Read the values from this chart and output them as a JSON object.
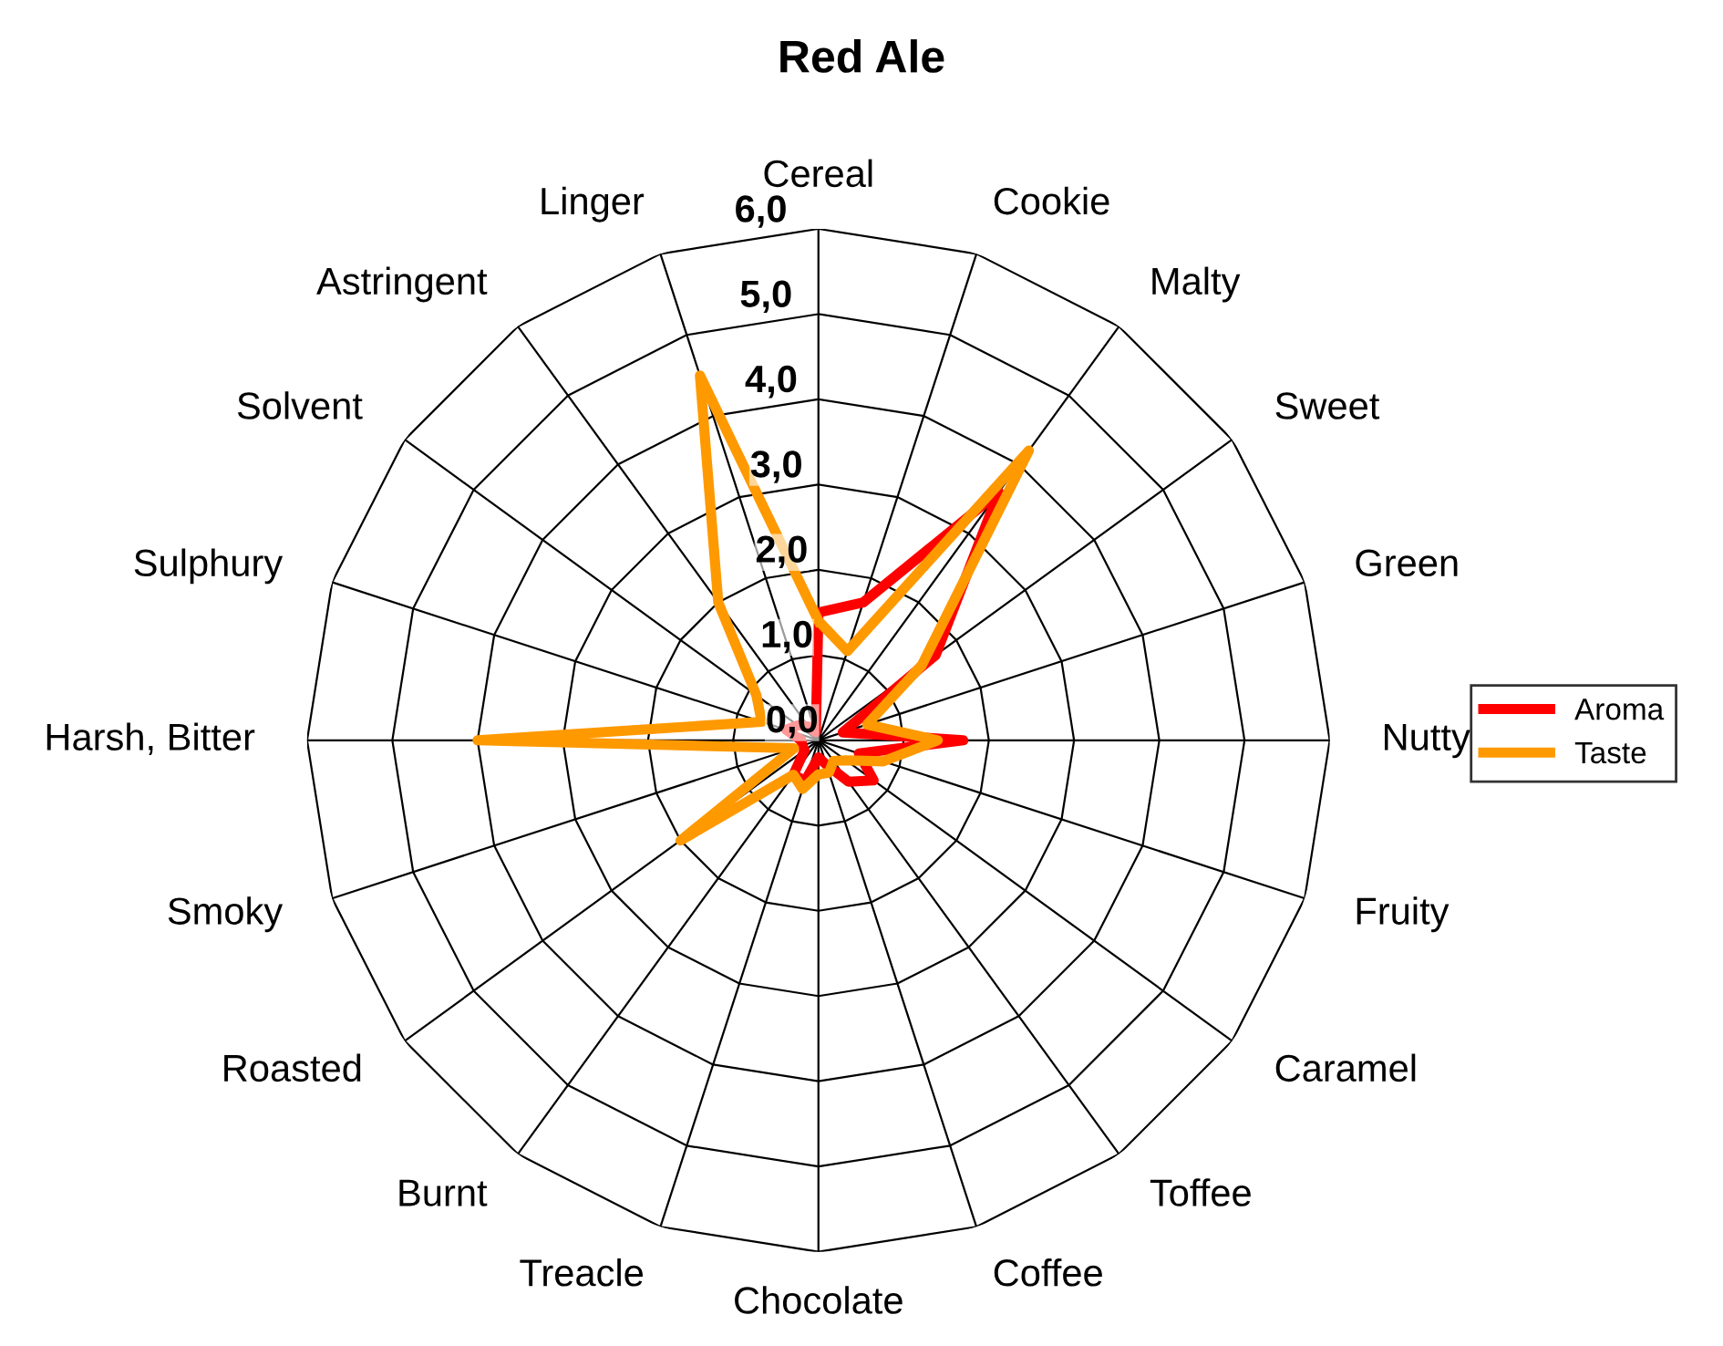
{
  "chart_data": {
    "type": "radar",
    "title": "Red Ale",
    "categories": [
      "Cereal",
      "Cookie",
      "Malty",
      "Sweet",
      "Green",
      "Nutty",
      "Fruity",
      "Caramel",
      "Toffee",
      "Coffee",
      "Chocolate",
      "Treacle",
      "Burnt",
      "Roasted",
      "Smoky",
      "Harsh, Bitter",
      "Sulphury",
      "Solvent",
      "Astringent",
      "Linger"
    ],
    "series": [
      {
        "name": "Aroma",
        "color": "#ff0000",
        "values": [
          1.5,
          1.7,
          3.6,
          1.7,
          0.3,
          1.7,
          0.5,
          0.8,
          0.6,
          0.3,
          0.2,
          0.5,
          0.5,
          0.2,
          0.2,
          0.2,
          0.4,
          0.3,
          0.2,
          0.1
        ]
      },
      {
        "name": "Taste",
        "color": "#ff9900",
        "values": [
          1.4,
          1.1,
          4.2,
          1.5,
          0.6,
          1.4,
          0.8,
          0.4,
          0.3,
          0.4,
          0.4,
          0.6,
          0.5,
          2.0,
          0.3,
          4.0,
          0.7,
          0.9,
          2.0,
          4.5
        ]
      }
    ],
    "ylim": [
      0,
      6
    ],
    "yticks": [
      {
        "value": 0,
        "label": "0,0"
      },
      {
        "value": 1,
        "label": "1,0"
      },
      {
        "value": 2,
        "label": "2,0"
      },
      {
        "value": 3,
        "label": "3,0"
      },
      {
        "value": 4,
        "label": "4,0"
      },
      {
        "value": 5,
        "label": "5,0"
      },
      {
        "value": 6,
        "label": "6,0"
      }
    ],
    "grid": true,
    "legend": "right"
  }
}
